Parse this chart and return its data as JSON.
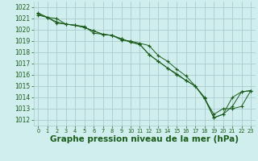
{
  "background_color": "#d0eeee",
  "grid_color": "#aacccc",
  "line_color": "#1a5c1a",
  "xlabel": "Graphe pression niveau de la mer (hPa)",
  "xlabel_fontsize": 7.5,
  "xlim": [
    -0.5,
    23.5
  ],
  "ylim": [
    1011.5,
    1022.5
  ],
  "yticks": [
    1012,
    1013,
    1014,
    1015,
    1016,
    1017,
    1018,
    1019,
    1020,
    1021,
    1022
  ],
  "xticks": [
    0,
    1,
    2,
    3,
    4,
    5,
    6,
    7,
    8,
    9,
    10,
    11,
    12,
    13,
    14,
    15,
    16,
    17,
    18,
    19,
    20,
    21,
    22,
    23
  ],
  "series1": [
    1021.3,
    1021.1,
    1021.0,
    1020.5,
    1020.4,
    1020.3,
    1019.7,
    1019.6,
    1019.5,
    1019.1,
    1019.0,
    1018.8,
    1018.6,
    1017.7,
    1017.2,
    1016.5,
    1015.9,
    1015.0,
    1014.0,
    1012.2,
    1012.5,
    1014.0,
    1014.5,
    1014.6
  ],
  "series2": [
    1021.5,
    1021.1,
    1020.6,
    1020.5,
    1020.4,
    1020.2,
    1019.9,
    1019.6,
    1019.5,
    1019.2,
    1018.9,
    1018.7,
    1017.8,
    1017.2,
    1016.6,
    1016.1,
    1015.5,
    1015.0,
    1013.9,
    1012.5,
    1013.0,
    1013.0,
    1013.2,
    1014.6
  ],
  "series3": [
    1021.4,
    1021.1,
    1020.7,
    1020.5,
    1020.4,
    1020.2,
    1019.9,
    1019.6,
    1019.5,
    1019.2,
    1018.9,
    1018.7,
    1017.8,
    1017.2,
    1016.6,
    1016.0,
    1015.5,
    1015.0,
    1013.9,
    1012.2,
    1012.5,
    1013.2,
    1014.5,
    1014.6
  ]
}
